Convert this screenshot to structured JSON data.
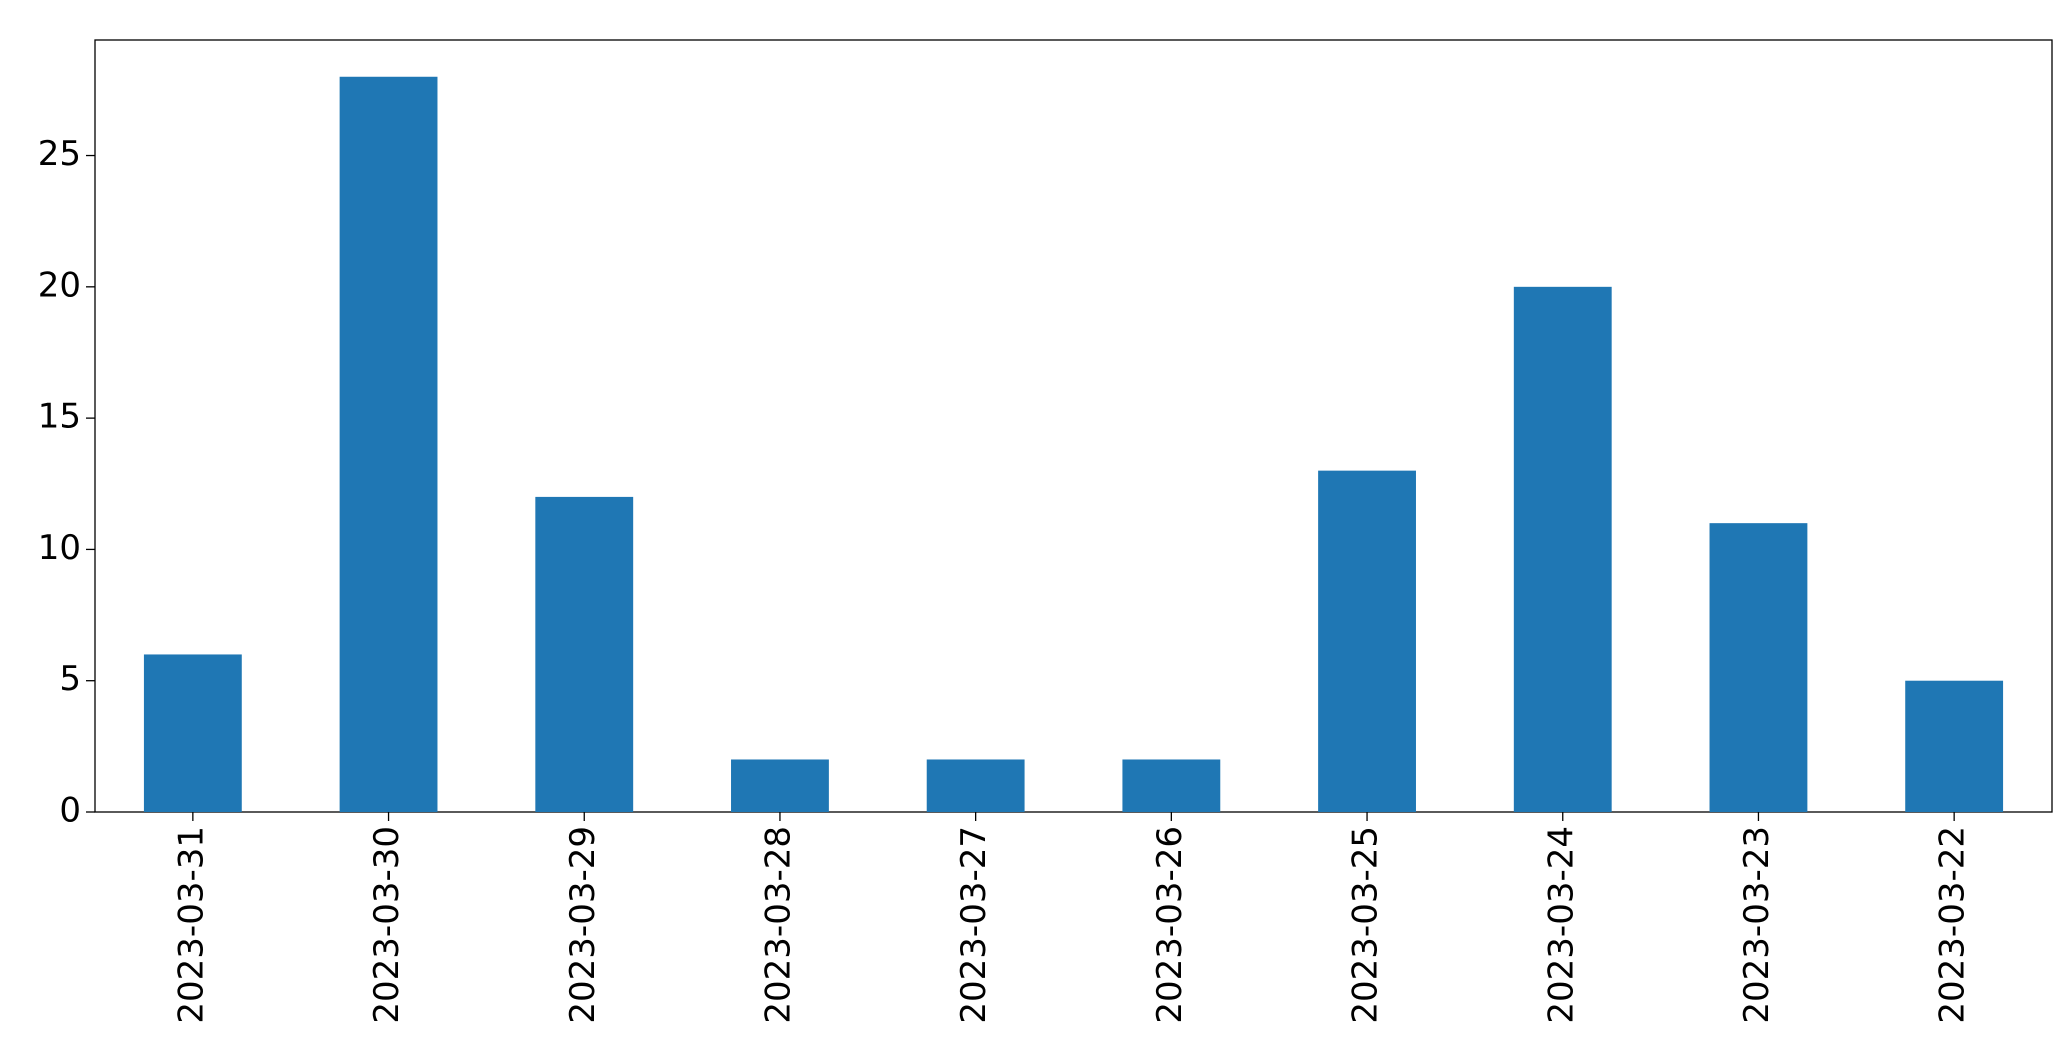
{
  "chart_data": {
    "type": "bar",
    "categories": [
      "2023-03-31",
      "2023-03-30",
      "2023-03-29",
      "2023-03-28",
      "2023-03-27",
      "2023-03-26",
      "2023-03-25",
      "2023-03-24",
      "2023-03-23",
      "2023-03-22"
    ],
    "values": [
      6,
      28,
      12,
      2,
      2,
      2,
      13,
      20,
      11,
      5
    ],
    "color": "#1f77b4",
    "ylim": [
      0,
      29.4
    ],
    "yticks": [
      0,
      5,
      10,
      15,
      20,
      25
    ],
    "grid": false
  }
}
